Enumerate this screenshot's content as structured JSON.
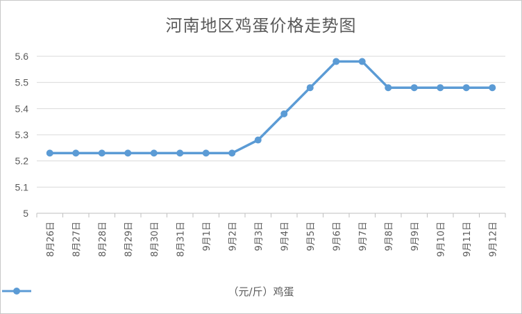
{
  "chart_data": {
    "type": "line",
    "title": "河南地区鸡蛋价格走势图",
    "xlabel": "",
    "ylabel": "",
    "categories": [
      "8月26日",
      "8月27日",
      "8月28日",
      "8月29日",
      "8月30日",
      "8月31日",
      "9月1日",
      "9月2日",
      "9月3日",
      "9月4日",
      "9月5日",
      "9月6日",
      "9月7日",
      "9月8日",
      "9月9日",
      "9月10日",
      "9月11日",
      "9月12日"
    ],
    "series": [
      {
        "name": "（元/斤）鸡蛋",
        "values": [
          5.23,
          5.23,
          5.23,
          5.23,
          5.23,
          5.23,
          5.23,
          5.23,
          5.28,
          5.38,
          5.48,
          5.58,
          5.58,
          5.48,
          5.48,
          5.48,
          5.48,
          5.48
        ]
      }
    ],
    "ylim": [
      5,
      5.6
    ],
    "yticks": [
      5,
      5.1,
      5.2,
      5.3,
      5.4,
      5.5,
      5.6
    ],
    "ytick_labels": [
      "5",
      "5.1",
      "5.2",
      "5.3",
      "5.4",
      "5.5",
      "5.6"
    ],
    "grid": true,
    "legend_position": "bottom",
    "colors": {
      "line": "#5b9bd5",
      "grid": "#d9d9d9",
      "axis": "#bfbfbf",
      "text": "#595959"
    }
  }
}
